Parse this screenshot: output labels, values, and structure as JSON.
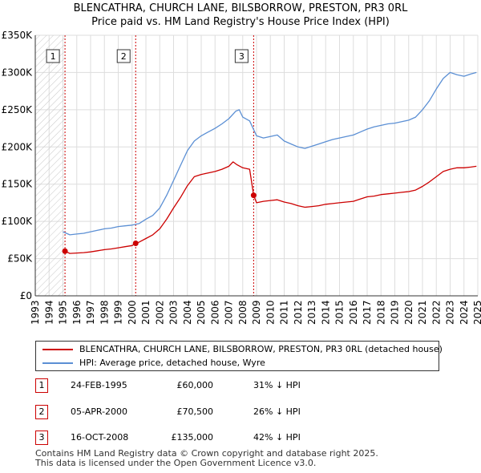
{
  "header": {
    "title_line1": "BLENCATHRA, CHURCH LANE, BILSBORROW, PRESTON, PR3 0RL",
    "title_line2": "Price paid vs. HM Land Registry's House Price Index (HPI)"
  },
  "colors": {
    "property": "#cc0000",
    "hpi": "#5b8fd4",
    "grid": "#dddddd",
    "hatch": "#c8c8c8",
    "marker_line": "#cc0000"
  },
  "chart_data": {
    "type": "line",
    "title": "Price paid vs. HM Land Registry's House Price Index (HPI)",
    "xlabel": "",
    "ylabel": "",
    "xlim": [
      1993,
      2025
    ],
    "ylim": [
      0,
      350000
    ],
    "x_ticks": [
      1993,
      1994,
      1995,
      1996,
      1997,
      1998,
      1999,
      2000,
      2001,
      2002,
      2003,
      2004,
      2005,
      2006,
      2007,
      2008,
      2009,
      2010,
      2011,
      2012,
      2013,
      2014,
      2015,
      2016,
      2017,
      2018,
      2019,
      2020,
      2021,
      2022,
      2023,
      2024,
      2025
    ],
    "y_ticks": [
      0,
      50000,
      100000,
      150000,
      200000,
      250000,
      300000,
      350000
    ],
    "y_tick_labels": [
      "£0",
      "£50K",
      "£100K",
      "£150K",
      "£200K",
      "£250K",
      "£300K",
      "£350K"
    ],
    "hatch_range": [
      1993,
      1995.15
    ],
    "grid": true,
    "series": [
      {
        "name": "BLENCATHRA, CHURCH LANE, BILSBORROW, PRESTON, PR3 0RL (detached house)",
        "color": "#cc0000",
        "points": [
          [
            1995.15,
            60000
          ],
          [
            1995.5,
            57000
          ],
          [
            1996,
            57500
          ],
          [
            1996.5,
            58000
          ],
          [
            1997,
            59000
          ],
          [
            1997.5,
            60500
          ],
          [
            1998,
            62000
          ],
          [
            1998.5,
            63000
          ],
          [
            1999,
            64500
          ],
          [
            1999.5,
            66000
          ],
          [
            2000,
            67500
          ],
          [
            2000.26,
            70500
          ],
          [
            2000.5,
            72000
          ],
          [
            2001,
            77000
          ],
          [
            2001.5,
            82000
          ],
          [
            2002,
            90000
          ],
          [
            2002.5,
            103000
          ],
          [
            2003,
            118000
          ],
          [
            2003.5,
            132000
          ],
          [
            2004,
            148000
          ],
          [
            2004.5,
            160000
          ],
          [
            2005,
            163000
          ],
          [
            2005.5,
            165000
          ],
          [
            2006,
            167000
          ],
          [
            2006.5,
            170000
          ],
          [
            2007,
            174000
          ],
          [
            2007.3,
            180000
          ],
          [
            2007.6,
            176000
          ],
          [
            2008,
            172000
          ],
          [
            2008.5,
            170000
          ],
          [
            2008.79,
            135000
          ],
          [
            2009,
            125000
          ],
          [
            2009.5,
            127000
          ],
          [
            2010,
            128000
          ],
          [
            2010.5,
            129000
          ],
          [
            2011,
            126000
          ],
          [
            2011.5,
            124000
          ],
          [
            2012,
            121000
          ],
          [
            2012.5,
            119000
          ],
          [
            2013,
            120000
          ],
          [
            2013.5,
            121000
          ],
          [
            2014,
            123000
          ],
          [
            2014.5,
            124000
          ],
          [
            2015,
            125000
          ],
          [
            2015.5,
            126000
          ],
          [
            2016,
            127000
          ],
          [
            2016.5,
            130000
          ],
          [
            2017,
            133000
          ],
          [
            2017.5,
            134000
          ],
          [
            2018,
            136000
          ],
          [
            2018.5,
            137000
          ],
          [
            2019,
            138000
          ],
          [
            2019.5,
            139000
          ],
          [
            2020,
            140000
          ],
          [
            2020.5,
            142000
          ],
          [
            2021,
            147000
          ],
          [
            2021.5,
            153000
          ],
          [
            2022,
            160000
          ],
          [
            2022.5,
            167000
          ],
          [
            2023,
            170000
          ],
          [
            2023.5,
            172000
          ],
          [
            2024,
            172000
          ],
          [
            2024.5,
            173000
          ],
          [
            2024.9,
            174000
          ]
        ]
      },
      {
        "name": "HPI: Average price, detached house, Wyre",
        "color": "#5b8fd4",
        "points": [
          [
            1995,
            86000
          ],
          [
            1995.5,
            82000
          ],
          [
            1996,
            83000
          ],
          [
            1996.5,
            84000
          ],
          [
            1997,
            86000
          ],
          [
            1997.5,
            88000
          ],
          [
            1998,
            90000
          ],
          [
            1998.5,
            91000
          ],
          [
            1999,
            93000
          ],
          [
            1999.5,
            94000
          ],
          [
            2000,
            95000
          ],
          [
            2000.5,
            97000
          ],
          [
            2001,
            103000
          ],
          [
            2001.5,
            108000
          ],
          [
            2002,
            118000
          ],
          [
            2002.5,
            135000
          ],
          [
            2003,
            155000
          ],
          [
            2003.5,
            175000
          ],
          [
            2004,
            195000
          ],
          [
            2004.5,
            208000
          ],
          [
            2005,
            215000
          ],
          [
            2005.5,
            220000
          ],
          [
            2006,
            225000
          ],
          [
            2006.5,
            231000
          ],
          [
            2007,
            238000
          ],
          [
            2007.5,
            248000
          ],
          [
            2007.75,
            250000
          ],
          [
            2008,
            240000
          ],
          [
            2008.5,
            235000
          ],
          [
            2009,
            215000
          ],
          [
            2009.5,
            212000
          ],
          [
            2010,
            214000
          ],
          [
            2010.5,
            216000
          ],
          [
            2011,
            208000
          ],
          [
            2011.5,
            204000
          ],
          [
            2012,
            200000
          ],
          [
            2012.5,
            198000
          ],
          [
            2013,
            201000
          ],
          [
            2013.5,
            204000
          ],
          [
            2014,
            207000
          ],
          [
            2014.5,
            210000
          ],
          [
            2015,
            212000
          ],
          [
            2015.5,
            214000
          ],
          [
            2016,
            216000
          ],
          [
            2016.5,
            220000
          ],
          [
            2017,
            224000
          ],
          [
            2017.5,
            227000
          ],
          [
            2018,
            229000
          ],
          [
            2018.5,
            231000
          ],
          [
            2019,
            232000
          ],
          [
            2019.5,
            234000
          ],
          [
            2020,
            236000
          ],
          [
            2020.5,
            240000
          ],
          [
            2021,
            250000
          ],
          [
            2021.5,
            262000
          ],
          [
            2022,
            278000
          ],
          [
            2022.5,
            292000
          ],
          [
            2023,
            300000
          ],
          [
            2023.5,
            297000
          ],
          [
            2024,
            295000
          ],
          [
            2024.5,
            298000
          ],
          [
            2024.9,
            300000
          ]
        ]
      }
    ],
    "sale_markers": [
      {
        "label": "1",
        "x": 1995.15,
        "y": 60000
      },
      {
        "label": "2",
        "x": 2000.26,
        "y": 70500
      },
      {
        "label": "3",
        "x": 2008.79,
        "y": 135000
      }
    ]
  },
  "legend": {
    "property_label": "BLENCATHRA, CHURCH LANE, BILSBORROW, PRESTON, PR3 0RL (detached house)",
    "hpi_label": "HPI: Average price, detached house, Wyre"
  },
  "sales": [
    {
      "num": "1",
      "date": "24-FEB-1995",
      "price": "£60,000",
      "hpi": "31% ↓ HPI"
    },
    {
      "num": "2",
      "date": "05-APR-2000",
      "price": "£70,500",
      "hpi": "26% ↓ HPI"
    },
    {
      "num": "3",
      "date": "16-OCT-2008",
      "price": "£135,000",
      "hpi": "42% ↓ HPI"
    }
  ],
  "footer": {
    "line1": "Contains HM Land Registry data © Crown copyright and database right 2025.",
    "line2": "This data is licensed under the Open Government Licence v3.0."
  }
}
